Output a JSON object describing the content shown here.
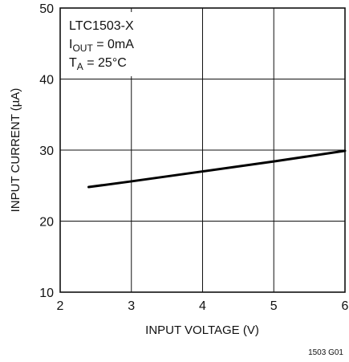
{
  "chart_data": {
    "type": "line",
    "xlabel": "INPUT VOLTAGE (V)",
    "ylabel": "INPUT CURRENT (µA)",
    "xlim": [
      2,
      6
    ],
    "ylim": [
      10,
      50
    ],
    "x_ticks": [
      "2",
      "3",
      "4",
      "5",
      "6"
    ],
    "y_ticks": [
      "10",
      "20",
      "30",
      "40",
      "50"
    ],
    "grid": true,
    "series": [
      {
        "x": [
          2.4,
          3,
          4,
          5,
          6
        ],
        "y": [
          24.8,
          25.6,
          27.0,
          28.4,
          29.9
        ]
      }
    ],
    "annotation": {
      "part": "LTC1503-X",
      "iout_main": "I",
      "iout_sub": "OUT",
      "iout_rest": " = 0mA",
      "ta_main": "T",
      "ta_sub": "A",
      "ta_rest": " = 25°C"
    },
    "figure_id": "1503 G01"
  }
}
